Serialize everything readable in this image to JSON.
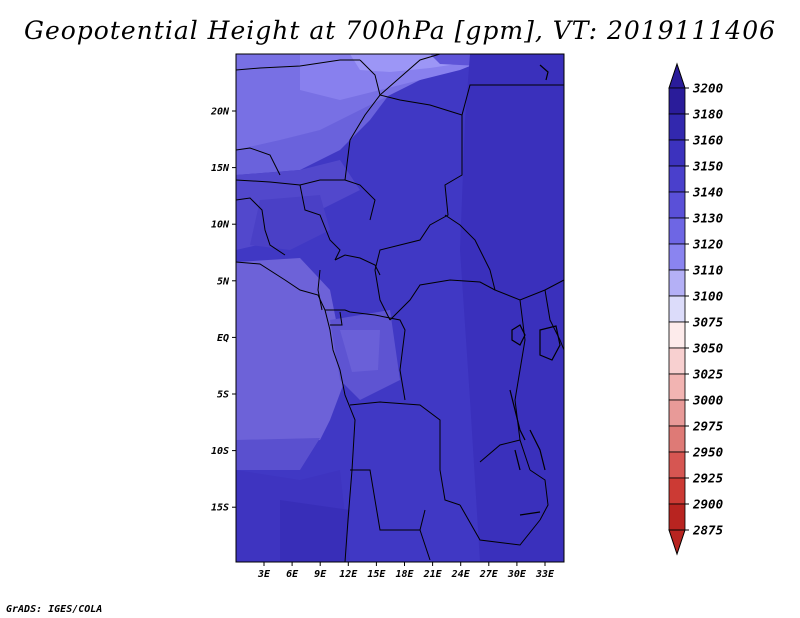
{
  "title": "Geopotential Height at 700hPa [gpm], VT: 2019111406",
  "credit": "GrADS: IGES/COLA",
  "map": {
    "lon_labels": [
      "3E",
      "6E",
      "9E",
      "12E",
      "15E",
      "18E",
      "21E",
      "24E",
      "27E",
      "30E",
      "33E"
    ],
    "lat_labels": [
      "20N",
      "15N",
      "10N",
      "5N",
      "EQ",
      "5S",
      "10S",
      "15S"
    ]
  },
  "colorbar": {
    "levels": [
      "3200",
      "3180",
      "3160",
      "3150",
      "3140",
      "3130",
      "3120",
      "3110",
      "3100",
      "3075",
      "3050",
      "3025",
      "3000",
      "2975",
      "2950",
      "2925",
      "2900",
      "2875"
    ],
    "colors": [
      "#2a1c9a",
      "#3228ae",
      "#3c32be",
      "#4a40cc",
      "#5a50d8",
      "#6e66e4",
      "#8a84f0",
      "#b4b0f6",
      "#dcdcfa",
      "#fdebeb",
      "#f8d0d0",
      "#f2b4b2",
      "#e89a98",
      "#de7a76",
      "#d65652",
      "#cc3a34",
      "#b82420"
    ],
    "top_arrow_color": "#2a1c9a",
    "bottom_arrow_color": "#b82420"
  }
}
